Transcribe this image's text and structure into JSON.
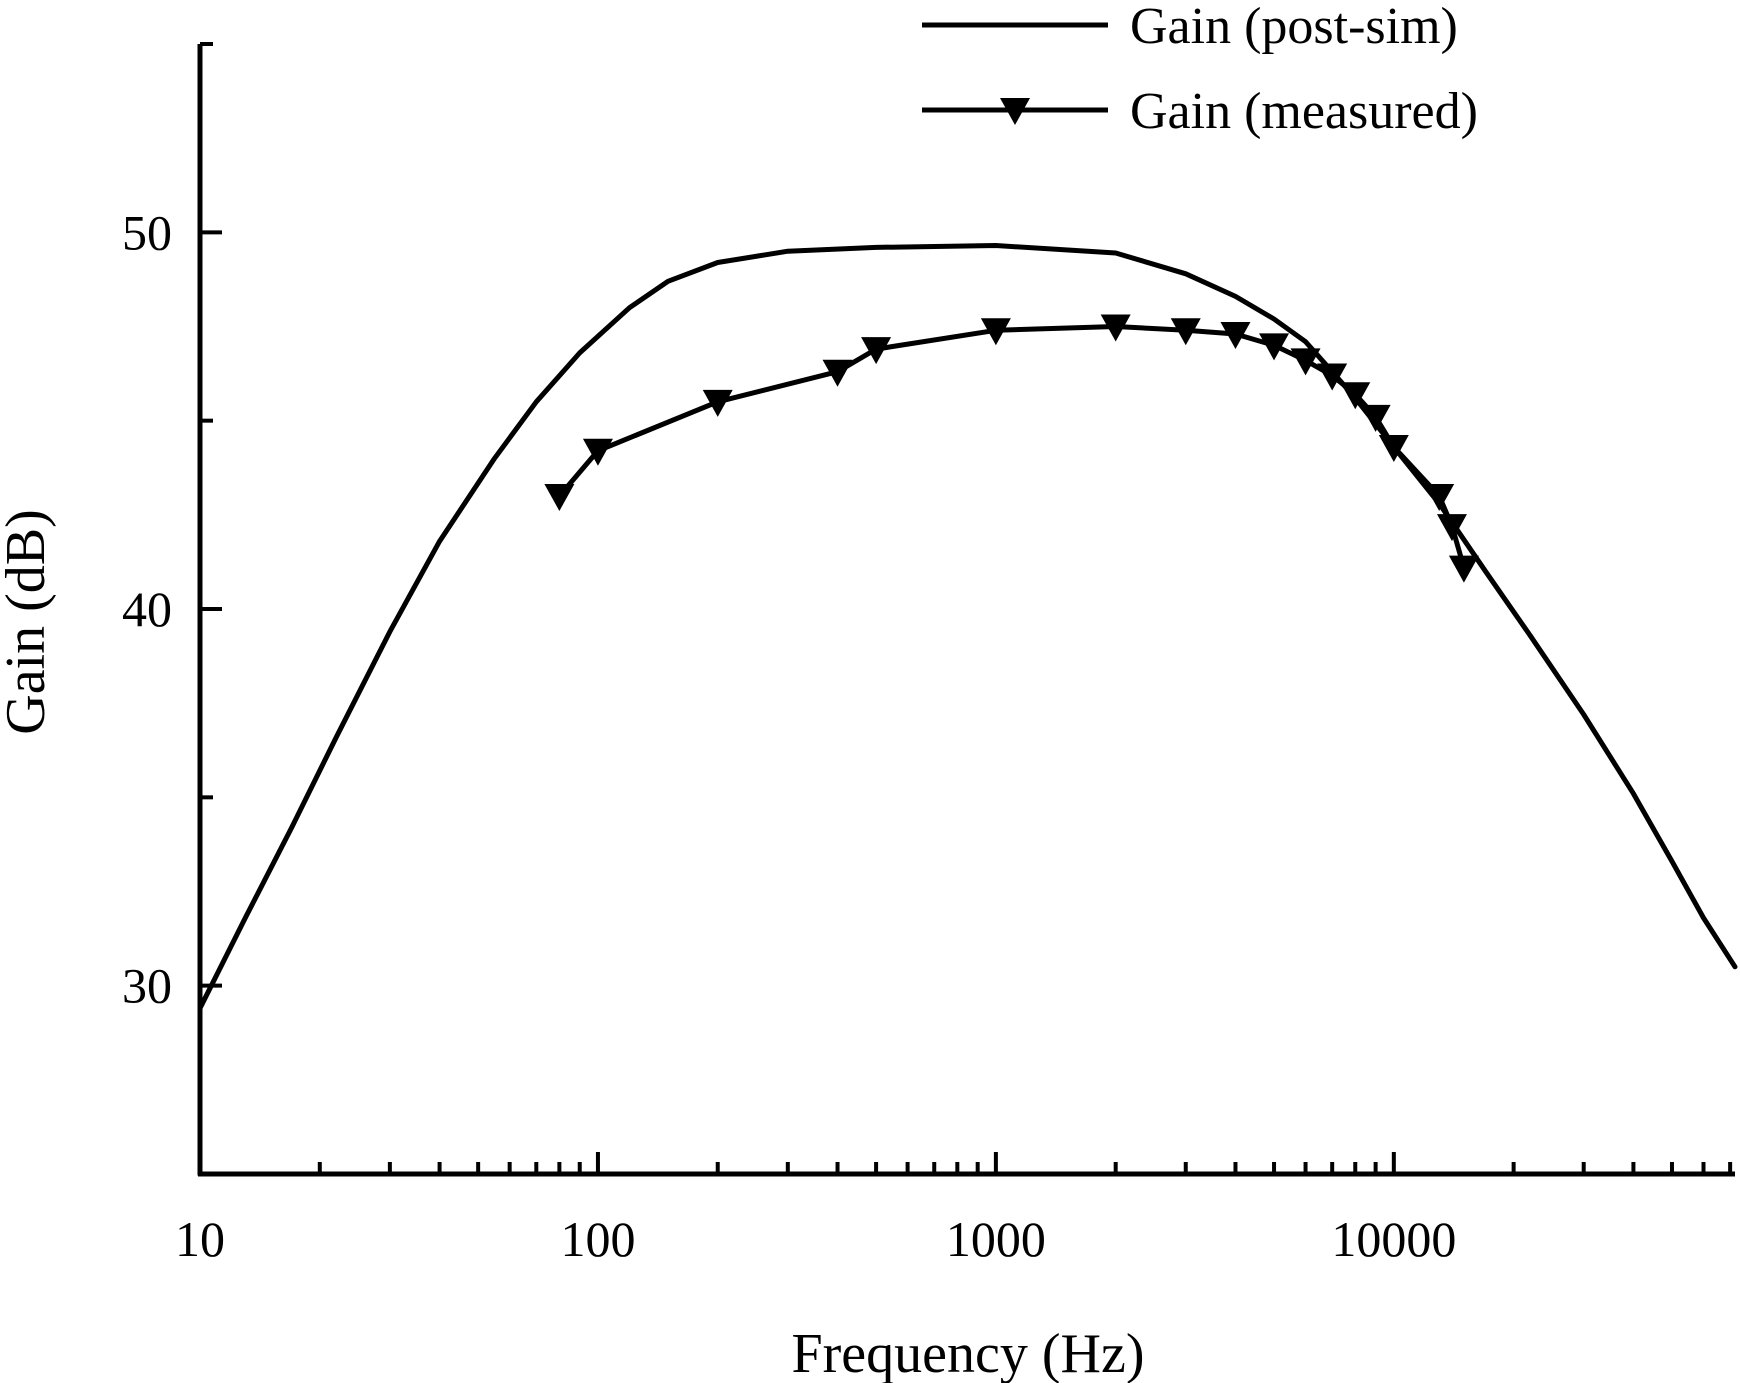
{
  "chart_data": {
    "type": "line",
    "title": "",
    "xlabel": "Frequency (Hz)",
    "ylabel": "Gain (dB)",
    "xscale": "log",
    "xlim": [
      10,
      72000
    ],
    "ylim": [
      25,
      55
    ],
    "grid": false,
    "legend_position": "top-right",
    "x_ticks": [
      {
        "value": 10,
        "label": "10"
      },
      {
        "value": 100,
        "label": "100"
      },
      {
        "value": 1000,
        "label": "1000"
      },
      {
        "value": 10000,
        "label": "10000"
      }
    ],
    "y_ticks": [
      {
        "value": 30,
        "label": "30"
      },
      {
        "value": 40,
        "label": "40"
      },
      {
        "value": 50,
        "label": "50"
      }
    ],
    "y_minor_ticks": [
      35,
      45,
      55
    ],
    "series": [
      {
        "name": "Gain (post-sim)",
        "marker": "none",
        "color": "#000000",
        "x": [
          10,
          13,
          17,
          22,
          30,
          40,
          55,
          70,
          90,
          120,
          150,
          200,
          300,
          500,
          1000,
          2000,
          3000,
          4000,
          5000,
          6000,
          7000,
          8000,
          10000,
          13000,
          17000,
          22000,
          30000,
          40000,
          50000,
          60000,
          72000
        ],
        "y": [
          29.4,
          31.8,
          34.2,
          36.6,
          39.4,
          41.8,
          44.0,
          45.5,
          46.8,
          48.0,
          48.7,
          49.2,
          49.5,
          49.6,
          49.65,
          49.45,
          48.9,
          48.3,
          47.7,
          47.1,
          46.3,
          45.6,
          44.3,
          42.8,
          41.0,
          39.3,
          37.2,
          35.1,
          33.3,
          31.8,
          30.5
        ]
      },
      {
        "name": "Gain (measured)",
        "marker": "triangle-down",
        "color": "#000000",
        "x": [
          80,
          100,
          200,
          400,
          500,
          1000,
          2000,
          3000,
          4000,
          5000,
          6000,
          7000,
          8000,
          9000,
          10000,
          13000,
          14000,
          15000
        ],
        "y": [
          43.0,
          44.2,
          45.5,
          46.3,
          46.9,
          47.4,
          47.5,
          47.4,
          47.3,
          47.0,
          46.6,
          46.2,
          45.7,
          45.1,
          44.3,
          43.0,
          42.2,
          41.1
        ]
      }
    ]
  }
}
